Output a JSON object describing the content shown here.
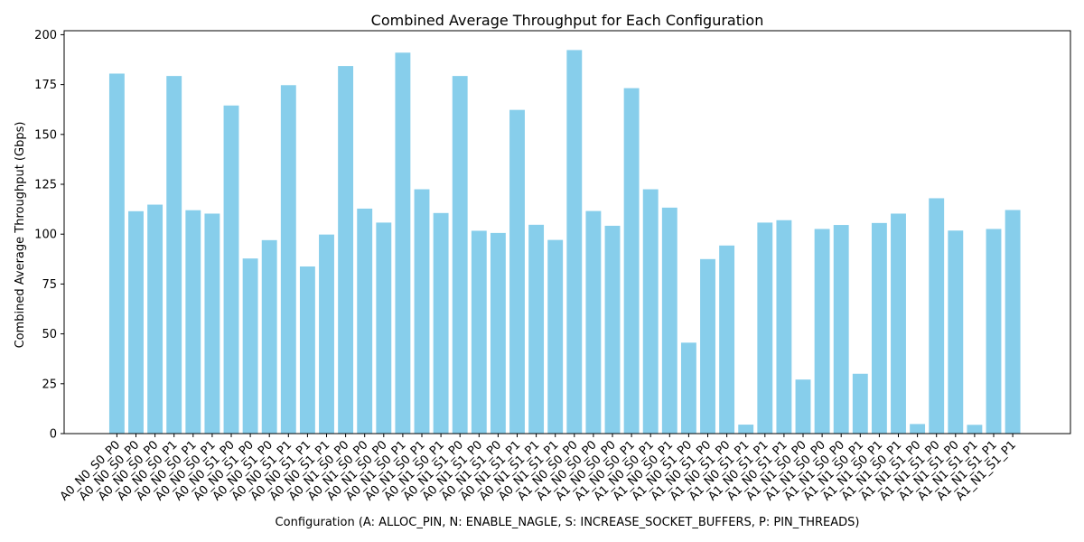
{
  "chart_data": {
    "type": "bar",
    "title": "Combined Average Throughput for Each Configuration",
    "xlabel": "Configuration (A: ALLOC_PIN, N: ENABLE_NAGLE, S: INCREASE_SOCKET_BUFFERS, P: PIN_THREADS)",
    "ylabel": "Combined Average Throughput (Gbps)",
    "ylim": [
      0,
      202
    ],
    "yticks": [
      0,
      25,
      50,
      75,
      100,
      125,
      150,
      175,
      200
    ],
    "bar_color": "#87CEEB",
    "grid": false,
    "categories": [
      "A0_N0_S0_P0",
      "A0_N0_S0_P0",
      "A0_N0_S0_P0",
      "A0_N0_S0_P1",
      "A0_N0_S0_P1",
      "A0_N0_S0_P1",
      "A0_N0_S1_P0",
      "A0_N0_S1_P0",
      "A0_N0_S1_P0",
      "A0_N0_S1_P1",
      "A0_N0_S1_P1",
      "A0_N0_S1_P1",
      "A0_N1_S0_P0",
      "A0_N1_S0_P0",
      "A0_N1_S0_P0",
      "A0_N1_S0_P1",
      "A0_N1_S0_P1",
      "A0_N1_S0_P1",
      "A0_N1_S1_P0",
      "A0_N1_S1_P0",
      "A0_N1_S1_P0",
      "A0_N1_S1_P1",
      "A0_N1_S1_P1",
      "A0_N1_S1_P1",
      "A1_N0_S0_P0",
      "A1_N0_S0_P0",
      "A1_N0_S0_P0",
      "A1_N0_S0_P1",
      "A1_N0_S0_P1",
      "A1_N0_S0_P1",
      "A1_N0_S1_P0",
      "A1_N0_S1_P0",
      "A1_N0_S1_P0",
      "A1_N0_S1_P1",
      "A1_N0_S1_P1",
      "A1_N0_S1_P1",
      "A1_N1_S0_P0",
      "A1_N1_S0_P0",
      "A1_N1_S0_P0",
      "A1_N1_S0_P1",
      "A1_N1_S0_P1",
      "A1_N1_S0_P1",
      "A1_N1_S1_P0",
      "A1_N1_S1_P0",
      "A1_N1_S1_P0",
      "A1_N1_S1_P1",
      "A1_N1_S1_P1",
      "A1_N1_S1_P1"
    ],
    "values": [
      180.5,
      111.5,
      114.8,
      179.3,
      112.0,
      110.3,
      164.5,
      87.8,
      97.0,
      174.7,
      83.8,
      99.8,
      184.3,
      112.8,
      105.8,
      191.0,
      122.5,
      110.6,
      179.3,
      101.7,
      100.6,
      162.3,
      104.7,
      97.1,
      192.3,
      111.6,
      104.2,
      173.2,
      122.5,
      113.3,
      45.6,
      87.5,
      94.3,
      4.5,
      105.8,
      107.0,
      27.1,
      102.6,
      104.6,
      30.0,
      105.6,
      110.3,
      4.8,
      118.0,
      101.8,
      4.4,
      102.6,
      112.1
    ]
  }
}
